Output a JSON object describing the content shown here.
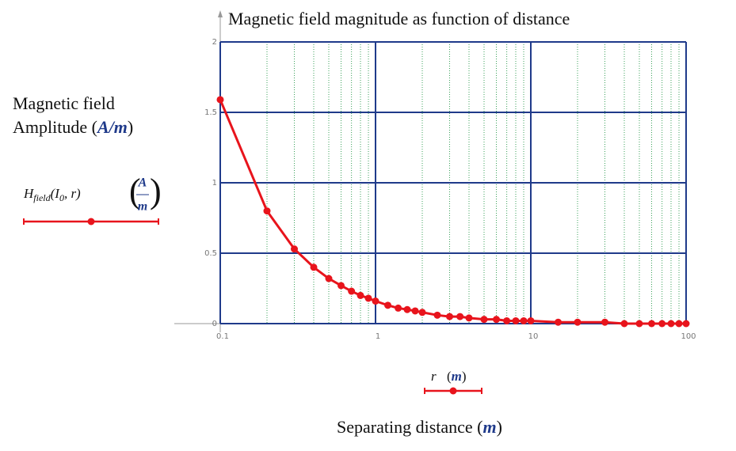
{
  "chart_data": {
    "type": "line",
    "title": "Magnetic field magnitude as function of distance",
    "y_label": {
      "line1": "Magnetic field",
      "line2": "Amplitude",
      "unit": "A/m"
    },
    "x_label": {
      "text": "Separating distance",
      "unit": "m"
    },
    "x_legend": {
      "name": "r",
      "unit": "m"
    },
    "x": [
      0.1,
      0.2,
      0.3,
      0.4,
      0.5,
      0.6,
      0.7,
      0.8,
      0.9,
      1,
      1.2,
      1.4,
      1.6,
      1.8,
      2,
      2.5,
      3,
      3.5,
      4,
      5,
      6,
      7,
      8,
      9,
      10,
      15,
      20,
      30,
      40,
      50,
      60,
      70,
      80,
      90,
      100
    ],
    "series": [
      {
        "name": "H",
        "name_subscript": "field",
        "args_open": "(I",
        "args_subscript": "0",
        "args_close": ", r)",
        "unit_num": "A",
        "unit_den": "m",
        "color": "#e8141c",
        "values": [
          1.59,
          0.8,
          0.53,
          0.4,
          0.32,
          0.27,
          0.23,
          0.2,
          0.18,
          0.16,
          0.13,
          0.11,
          0.1,
          0.09,
          0.08,
          0.06,
          0.05,
          0.05,
          0.04,
          0.03,
          0.03,
          0.02,
          0.02,
          0.02,
          0.02,
          0.01,
          0.01,
          0.01,
          0,
          0,
          0,
          0,
          0,
          0,
          0
        ]
      }
    ],
    "x_log": true,
    "xlim": [
      0.1,
      100
    ],
    "xticks": [
      0.1,
      1,
      10,
      100
    ],
    "xminorticks": [
      0.2,
      0.3,
      0.4,
      0.5,
      0.6,
      0.7,
      0.8,
      0.9,
      2,
      3,
      4,
      5,
      6,
      7,
      8,
      9,
      20,
      30,
      40,
      50,
      60,
      70,
      80,
      90
    ],
    "ylim": [
      0,
      2
    ],
    "yticks": [
      0,
      0.5,
      1,
      1.5,
      2
    ],
    "grid": true,
    "grid_color": "#1f3a8a",
    "minor_grid_color": "#3aa05a"
  }
}
